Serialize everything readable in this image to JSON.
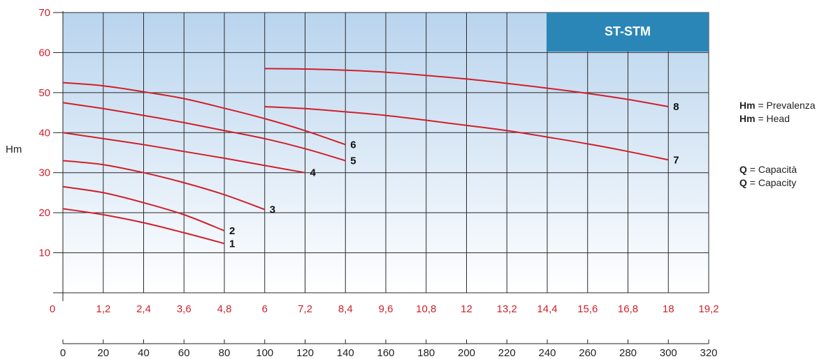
{
  "chart_data": {
    "type": "line",
    "title": "ST-STM",
    "ylabel": "Hm",
    "ylim": [
      0,
      70
    ],
    "yticks": [
      10,
      20,
      30,
      40,
      50,
      60,
      70
    ],
    "xlim": [
      0,
      19.2
    ],
    "xticks_top": [
      "0",
      "1,2",
      "2,4",
      "3,6",
      "4,8",
      "6",
      "7,2",
      "8,4",
      "9,6",
      "10,8",
      "12",
      "13,2",
      "14,4",
      "15,6",
      "16,8",
      "18",
      "19,2"
    ],
    "xticks_bottom": [
      "0",
      "20",
      "40",
      "60",
      "80",
      "100",
      "120",
      "140",
      "160",
      "180",
      "200",
      "220",
      "240",
      "260",
      "280",
      "300",
      "320"
    ],
    "grid": true,
    "series": [
      {
        "name": "1",
        "x": [
          0,
          1.2,
          2.4,
          3.6,
          4.8
        ],
        "y": [
          21,
          19.5,
          17.5,
          15,
          12.3
        ]
      },
      {
        "name": "2",
        "x": [
          0,
          1.2,
          2.4,
          3.6,
          4.8
        ],
        "y": [
          26.5,
          25,
          22.5,
          19.5,
          15.5
        ]
      },
      {
        "name": "3",
        "x": [
          0,
          1.2,
          2.4,
          3.6,
          4.8,
          6
        ],
        "y": [
          33,
          32,
          30,
          27.5,
          24.5,
          20.8
        ]
      },
      {
        "name": "4",
        "x": [
          0,
          1.2,
          2.4,
          3.6,
          4.8,
          6,
          7.2
        ],
        "y": [
          40,
          38.5,
          37,
          35.3,
          33.6,
          31.8,
          30
        ]
      },
      {
        "name": "5",
        "x": [
          0,
          1.2,
          2.4,
          3.6,
          4.8,
          6,
          7.2,
          8.4
        ],
        "y": [
          47.5,
          46,
          44.3,
          42.5,
          40.5,
          38.5,
          36,
          33
        ]
      },
      {
        "name": "6",
        "x": [
          0,
          1.2,
          2.4,
          3.6,
          4.8,
          6,
          7.2,
          8.4
        ],
        "y": [
          52.5,
          51.7,
          50.2,
          48.5,
          46.1,
          43.5,
          40.5,
          37
        ]
      },
      {
        "name": "7",
        "x": [
          6,
          7.2,
          8.4,
          9.6,
          10.8,
          12,
          13.2,
          14.4,
          15.6,
          16.8,
          18
        ],
        "y": [
          46.5,
          46,
          45.2,
          44.3,
          43.1,
          41.8,
          40.5,
          38.9,
          37.2,
          35.3,
          33.2
        ]
      },
      {
        "name": "8",
        "x": [
          6,
          7.2,
          8.4,
          9.6,
          10.8,
          12,
          13.2,
          14.4,
          15.6,
          16.8,
          18
        ],
        "y": [
          56,
          55.9,
          55.6,
          55.1,
          54.3,
          53.4,
          52.3,
          51.1,
          49.8,
          48.3,
          46.5
        ]
      }
    ]
  },
  "colors": {
    "curve": "#d0202a",
    "tick_red": "#d0202a",
    "badge_bg": "#2b86b8",
    "badge_text": "#ffffff",
    "plot_top": "#b9d4ee",
    "plot_bottom": "#ffffff",
    "grid": "#2a2a2a"
  },
  "legend": {
    "hm_symbol": "Hm",
    "hm_it": "= Prevalenza",
    "hm_en": "= Head",
    "q_symbol": "Q",
    "q_it": "= Capacità",
    "q_en": "= Capacity"
  }
}
